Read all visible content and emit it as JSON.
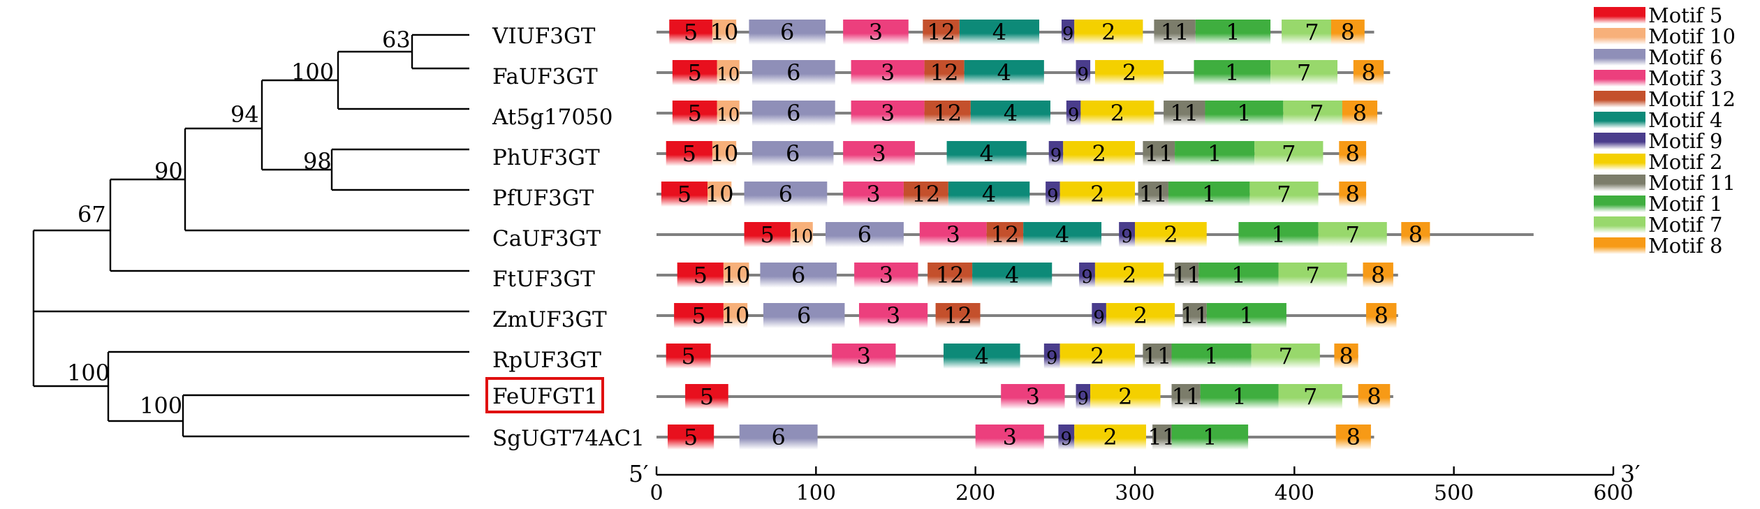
{
  "tree": {
    "taxa": [
      "VIUF3GT",
      "FaUF3GT",
      "At5g17050",
      "PhUF3GT",
      "PfUF3GT",
      "CaUF3GT",
      "FtUF3GT",
      "ZmUF3GT",
      "RpUF3GT",
      "FeUFGT1",
      "SgUGT74AC1"
    ],
    "highlighted_taxon": "FeUFGT1",
    "highlight_color": "#e01010",
    "bootstrap": [
      {
        "value": "63",
        "clade": [
          "VIUF3GT",
          "FaUF3GT"
        ]
      },
      {
        "value": "100",
        "clade": [
          "VIUF3GT",
          "FaUF3GT",
          "At5g17050"
        ]
      },
      {
        "value": "98",
        "clade": [
          "PhUF3GT",
          "PfUF3GT"
        ]
      },
      {
        "value": "94",
        "clade": [
          "VIUF3GT",
          "FaUF3GT",
          "At5g17050",
          "PhUF3GT",
          "PfUF3GT"
        ]
      },
      {
        "value": "90",
        "clade": [
          "VIUF3GT",
          "FaUF3GT",
          "At5g17050",
          "PhUF3GT",
          "PfUF3GT",
          "CaUF3GT"
        ]
      },
      {
        "value": "67",
        "clade": [
          "VIUF3GT",
          "FaUF3GT",
          "At5g17050",
          "PhUF3GT",
          "PfUF3GT",
          "CaUF3GT",
          "FtUF3GT"
        ]
      },
      {
        "value": "100",
        "clade": [
          "FeUFGT1",
          "SgUGT74AC1"
        ]
      },
      {
        "value": "100",
        "clade": [
          "RpUF3GT",
          "FeUFGT1",
          "SgUGT74AC1"
        ]
      }
    ]
  },
  "motif_map": {
    "axis": {
      "ticks": [
        0,
        100,
        200,
        300,
        400,
        500,
        600
      ],
      "tick_labels": [
        "0",
        "100",
        "200",
        "300",
        "400",
        "500",
        "600"
      ],
      "range": [
        0,
        600
      ],
      "left_label": "5′",
      "right_label": "3′"
    },
    "motif_colors": {
      "5": "#e8101e",
      "10": "#f7b07a",
      "6": "#8f8fb8",
      "3": "#ec3f7d",
      "12": "#c4502c",
      "4": "#0d8a78",
      "9": "#4a3d8c",
      "2": "#f4d000",
      "11": "#7c7d6b",
      "1": "#3fae3f",
      "7": "#98d86c",
      "8": "#f79a16"
    },
    "sequences": [
      {
        "name": "VIUF3GT",
        "length": 450,
        "motifs": [
          {
            "id": "5",
            "start": 8,
            "end": 35
          },
          {
            "id": "10",
            "start": 35,
            "end": 50
          },
          {
            "id": "6",
            "start": 58,
            "end": 106
          },
          {
            "id": "3",
            "start": 117,
            "end": 158
          },
          {
            "id": "12",
            "start": 167,
            "end": 190
          },
          {
            "id": "4",
            "start": 190,
            "end": 240
          },
          {
            "id": "9",
            "start": 254,
            "end": 262
          },
          {
            "id": "2",
            "start": 262,
            "end": 305
          },
          {
            "id": "11",
            "start": 312,
            "end": 338
          },
          {
            "id": "1",
            "start": 338,
            "end": 385
          },
          {
            "id": "7",
            "start": 392,
            "end": 430
          },
          {
            "id": "8",
            "start": 423,
            "end": 444
          }
        ]
      },
      {
        "name": "FaUF3GT",
        "length": 460,
        "motifs": [
          {
            "id": "5",
            "start": 10,
            "end": 38
          },
          {
            "id": "10",
            "start": 38,
            "end": 52
          },
          {
            "id": "6",
            "start": 60,
            "end": 112
          },
          {
            "id": "3",
            "start": 122,
            "end": 168
          },
          {
            "id": "12",
            "start": 168,
            "end": 193
          },
          {
            "id": "4",
            "start": 193,
            "end": 243
          },
          {
            "id": "9",
            "start": 263,
            "end": 272
          },
          {
            "id": "2",
            "start": 275,
            "end": 318
          },
          {
            "id": "1",
            "start": 337,
            "end": 385
          },
          {
            "id": "7",
            "start": 385,
            "end": 427
          },
          {
            "id": "8",
            "start": 437,
            "end": 456
          }
        ]
      },
      {
        "name": "At5g17050",
        "length": 455,
        "motifs": [
          {
            "id": "5",
            "start": 10,
            "end": 38
          },
          {
            "id": "10",
            "start": 38,
            "end": 52
          },
          {
            "id": "6",
            "start": 60,
            "end": 112
          },
          {
            "id": "3",
            "start": 122,
            "end": 168
          },
          {
            "id": "12",
            "start": 168,
            "end": 197
          },
          {
            "id": "4",
            "start": 197,
            "end": 247
          },
          {
            "id": "9",
            "start": 257,
            "end": 266
          },
          {
            "id": "2",
            "start": 266,
            "end": 312
          },
          {
            "id": "11",
            "start": 318,
            "end": 344
          },
          {
            "id": "1",
            "start": 344,
            "end": 393
          },
          {
            "id": "7",
            "start": 393,
            "end": 435
          },
          {
            "id": "8",
            "start": 430,
            "end": 452
          }
        ]
      },
      {
        "name": "PhUF3GT",
        "length": 445,
        "motifs": [
          {
            "id": "5",
            "start": 6,
            "end": 35
          },
          {
            "id": "10",
            "start": 35,
            "end": 50
          },
          {
            "id": "6",
            "start": 60,
            "end": 111
          },
          {
            "id": "3",
            "start": 117,
            "end": 162
          },
          {
            "id": "4",
            "start": 182,
            "end": 232
          },
          {
            "id": "9",
            "start": 246,
            "end": 255
          },
          {
            "id": "2",
            "start": 255,
            "end": 300
          },
          {
            "id": "11",
            "start": 305,
            "end": 325
          },
          {
            "id": "1",
            "start": 325,
            "end": 375
          },
          {
            "id": "7",
            "start": 375,
            "end": 418
          },
          {
            "id": "8",
            "start": 428,
            "end": 445
          }
        ]
      },
      {
        "name": "PfUF3GT",
        "length": 445,
        "motifs": [
          {
            "id": "5",
            "start": 3,
            "end": 32
          },
          {
            "id": "10",
            "start": 32,
            "end": 47
          },
          {
            "id": "6",
            "start": 55,
            "end": 107
          },
          {
            "id": "3",
            "start": 117,
            "end": 155
          },
          {
            "id": "12",
            "start": 155,
            "end": 183
          },
          {
            "id": "4",
            "start": 183,
            "end": 234
          },
          {
            "id": "9",
            "start": 244,
            "end": 253
          },
          {
            "id": "2",
            "start": 253,
            "end": 300
          },
          {
            "id": "11",
            "start": 302,
            "end": 321
          },
          {
            "id": "1",
            "start": 321,
            "end": 372
          },
          {
            "id": "7",
            "start": 372,
            "end": 415
          },
          {
            "id": "8",
            "start": 428,
            "end": 445
          }
        ]
      },
      {
        "name": "CaUF3GT",
        "length": 550,
        "motifs": [
          {
            "id": "5",
            "start": 55,
            "end": 84
          },
          {
            "id": "10",
            "start": 84,
            "end": 98
          },
          {
            "id": "6",
            "start": 106,
            "end": 155
          },
          {
            "id": "3",
            "start": 165,
            "end": 207
          },
          {
            "id": "12",
            "start": 207,
            "end": 230
          },
          {
            "id": "4",
            "start": 230,
            "end": 279
          },
          {
            "id": "9",
            "start": 290,
            "end": 300
          },
          {
            "id": "2",
            "start": 300,
            "end": 345
          },
          {
            "id": "1",
            "start": 365,
            "end": 415
          },
          {
            "id": "7",
            "start": 415,
            "end": 458
          },
          {
            "id": "8",
            "start": 467,
            "end": 485
          }
        ]
      },
      {
        "name": "FtUF3GT",
        "length": 465,
        "motifs": [
          {
            "id": "5",
            "start": 13,
            "end": 42
          },
          {
            "id": "10",
            "start": 42,
            "end": 58
          },
          {
            "id": "6",
            "start": 65,
            "end": 113
          },
          {
            "id": "3",
            "start": 124,
            "end": 164
          },
          {
            "id": "12",
            "start": 170,
            "end": 198
          },
          {
            "id": "4",
            "start": 198,
            "end": 248
          },
          {
            "id": "9",
            "start": 265,
            "end": 275
          },
          {
            "id": "2",
            "start": 275,
            "end": 318
          },
          {
            "id": "11",
            "start": 325,
            "end": 340
          },
          {
            "id": "1",
            "start": 340,
            "end": 390
          },
          {
            "id": "7",
            "start": 390,
            "end": 433
          },
          {
            "id": "8",
            "start": 443,
            "end": 462
          }
        ]
      },
      {
        "name": "ZmUF3GT",
        "length": 465,
        "motifs": [
          {
            "id": "5",
            "start": 11,
            "end": 42
          },
          {
            "id": "10",
            "start": 42,
            "end": 57
          },
          {
            "id": "6",
            "start": 67,
            "end": 118
          },
          {
            "id": "3",
            "start": 127,
            "end": 170
          },
          {
            "id": "12",
            "start": 175,
            "end": 203
          },
          {
            "id": "9",
            "start": 273,
            "end": 282
          },
          {
            "id": "2",
            "start": 282,
            "end": 325
          },
          {
            "id": "11",
            "start": 330,
            "end": 345
          },
          {
            "id": "1",
            "start": 345,
            "end": 395
          },
          {
            "id": "8",
            "start": 445,
            "end": 464
          }
        ]
      },
      {
        "name": "RpUF3GT",
        "length": 440,
        "motifs": [
          {
            "id": "5",
            "start": 6,
            "end": 34
          },
          {
            "id": "3",
            "start": 110,
            "end": 150
          },
          {
            "id": "4",
            "start": 180,
            "end": 228
          },
          {
            "id": "9",
            "start": 243,
            "end": 253
          },
          {
            "id": "2",
            "start": 253,
            "end": 300
          },
          {
            "id": "11",
            "start": 305,
            "end": 323
          },
          {
            "id": "1",
            "start": 323,
            "end": 373
          },
          {
            "id": "7",
            "start": 373,
            "end": 416
          },
          {
            "id": "8",
            "start": 425,
            "end": 440
          }
        ]
      },
      {
        "name": "FeUFGT1",
        "length": 462,
        "motifs": [
          {
            "id": "5",
            "start": 18,
            "end": 45
          },
          {
            "id": "3",
            "start": 216,
            "end": 256
          },
          {
            "id": "9",
            "start": 263,
            "end": 272
          },
          {
            "id": "2",
            "start": 272,
            "end": 316
          },
          {
            "id": "11",
            "start": 323,
            "end": 341
          },
          {
            "id": "1",
            "start": 341,
            "end": 390
          },
          {
            "id": "7",
            "start": 390,
            "end": 430
          },
          {
            "id": "8",
            "start": 440,
            "end": 460
          }
        ]
      },
      {
        "name": "SgUGT74AC1",
        "length": 450,
        "motifs": [
          {
            "id": "5",
            "start": 7,
            "end": 36
          },
          {
            "id": "6",
            "start": 52,
            "end": 101
          },
          {
            "id": "3",
            "start": 200,
            "end": 243
          },
          {
            "id": "9",
            "start": 252,
            "end": 262
          },
          {
            "id": "2",
            "start": 262,
            "end": 307
          },
          {
            "id": "11",
            "start": 311,
            "end": 323
          },
          {
            "id": "1",
            "start": 323,
            "end": 371
          },
          {
            "id": "8",
            "start": 426,
            "end": 448
          }
        ]
      }
    ]
  },
  "legend": [
    {
      "motif": "5",
      "label": "Motif 5"
    },
    {
      "motif": "10",
      "label": "Motif 10"
    },
    {
      "motif": "6",
      "label": "Motif 6"
    },
    {
      "motif": "3",
      "label": "Motif 3"
    },
    {
      "motif": "12",
      "label": "Motif 12"
    },
    {
      "motif": "4",
      "label": "Motif 4"
    },
    {
      "motif": "9",
      "label": "Motif 9"
    },
    {
      "motif": "2",
      "label": "Motif 2"
    },
    {
      "motif": "11",
      "label": "Motif 11"
    },
    {
      "motif": "1",
      "label": "Motif 1"
    },
    {
      "motif": "7",
      "label": "Motif 7"
    },
    {
      "motif": "8",
      "label": "Motif 8"
    }
  ]
}
